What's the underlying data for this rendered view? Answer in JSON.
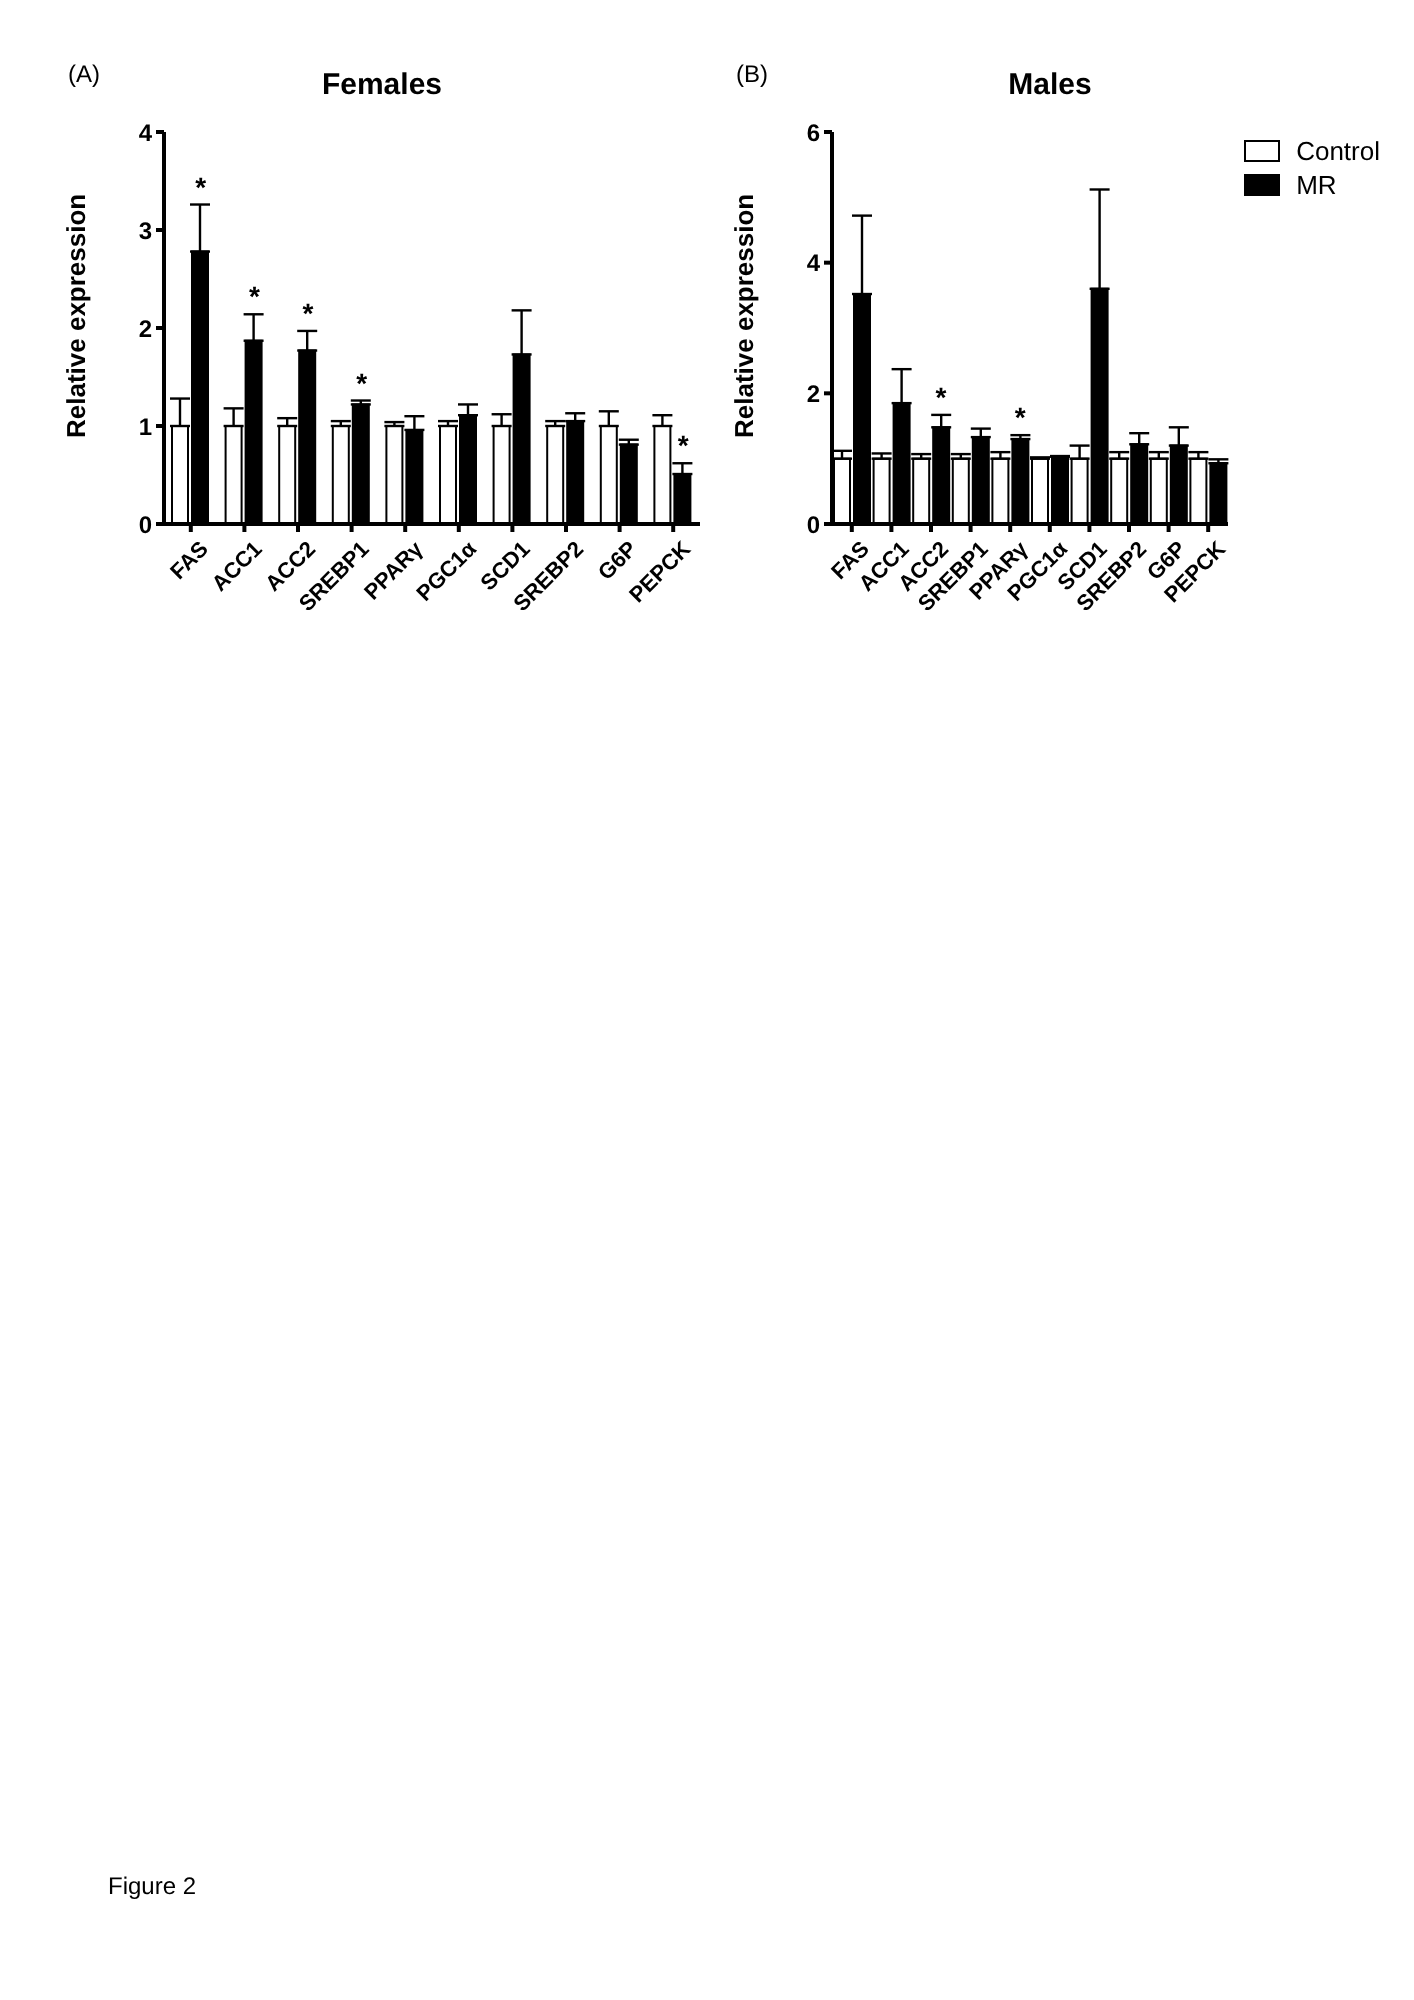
{
  "chart_data": [
    {
      "type": "bar",
      "title": "Females",
      "ylabel": "Relative expression",
      "categories": [
        "FAS",
        "ACC1",
        "ACC2",
        "SREBP1",
        "PPARγ",
        "PGC1α",
        "SCD1",
        "SREBP2",
        "G6P",
        "PEPCK"
      ],
      "series": [
        {
          "color": "#ffffff",
          "values": [
            1,
            1,
            1,
            1,
            1,
            1,
            1,
            1,
            1,
            1
          ],
          "errors": [
            [
              1,
              1.28
            ],
            [
              1,
              1.18
            ],
            [
              1,
              1.08
            ],
            [
              1,
              1.05
            ],
            [
              1,
              1.04
            ],
            [
              1,
              1.05
            ],
            [
              1,
              1.12
            ],
            [
              1,
              1.05
            ],
            [
              1,
              1.15
            ],
            [
              1,
              1.11
            ]
          ]
        },
        {
          "color": "#000000",
          "values": [
            2.78,
            1.87,
            1.77,
            1.22,
            0.96,
            1.11,
            1.73,
            1.05,
            0.81,
            0.51
          ],
          "errors": [
            [
              2.78,
              3.26
            ],
            [
              1.87,
              2.14
            ],
            [
              1.77,
              1.97
            ],
            [
              1.22,
              1.26
            ],
            [
              0.96,
              1.1
            ],
            [
              1.11,
              1.22
            ],
            [
              1.73,
              2.18
            ],
            [
              1.05,
              1.13
            ],
            [
              0.81,
              0.86
            ],
            [
              0.51,
              0.62
            ]
          ]
        }
      ],
      "ylim": [
        0,
        4
      ],
      "yticks": [
        0,
        1,
        2,
        3,
        4
      ],
      "annotations": [
        "(A)",
        "Figure 2",
        {
          "text": "*",
          "x": "FAS",
          "y": 3.26
        },
        {
          "text": "*",
          "x": "ACC1",
          "y": 2.14
        },
        {
          "text": "*",
          "x": "ACC2",
          "y": 1.97
        },
        {
          "text": "*",
          "x": "SREBP1",
          "y": 1.26
        },
        {
          "text": "*",
          "x": "PEPCK",
          "y": 0.62
        }
      ]
    },
    {
      "type": "bar",
      "title": "Males",
      "ylabel": "Relative expression",
      "categories": [
        "FAS",
        "ACC1",
        "ACC2",
        "SREBP1",
        "PPARγ",
        "PGC1α",
        "SCD1",
        "SREBP2",
        "G6P",
        "PEPCK"
      ],
      "series": [
        {
          "name": "Control",
          "color": "#ffffff",
          "values": [
            1,
            1,
            1,
            1,
            1,
            1,
            1,
            1,
            1,
            1
          ],
          "errors": [
            [
              1,
              1.12
            ],
            [
              1,
              1.08
            ],
            [
              1,
              1.07
            ],
            [
              1,
              1.07
            ],
            [
              1,
              1.1
            ],
            [
              1,
              1.02
            ],
            [
              1,
              1.2
            ],
            [
              1,
              1.1
            ],
            [
              1,
              1.1
            ],
            [
              1,
              1.1
            ]
          ]
        },
        {
          "name": "MR",
          "color": "#000000",
          "values": [
            3.52,
            1.85,
            1.48,
            1.33,
            1.3,
            1.03,
            3.6,
            1.22,
            1.2,
            0.93
          ],
          "errors": [
            [
              3.52,
              4.72
            ],
            [
              1.85,
              2.37
            ],
            [
              1.48,
              1.67
            ],
            [
              1.33,
              1.46
            ],
            [
              1.3,
              1.36
            ],
            [
              1.03,
              1.04
            ],
            [
              3.6,
              5.12
            ],
            [
              1.22,
              1.39
            ],
            [
              1.2,
              1.48
            ],
            [
              0.93,
              0.99
            ]
          ]
        }
      ],
      "ylim": [
        0,
        6
      ],
      "yticks": [
        0,
        2,
        4,
        6
      ],
      "legend": "top right",
      "annotations": [
        "(B)",
        {
          "text": "*",
          "x": "ACC2",
          "y": 1.67
        },
        {
          "text": "*",
          "x": "PPARγ",
          "y": 1.36
        }
      ]
    }
  ]
}
